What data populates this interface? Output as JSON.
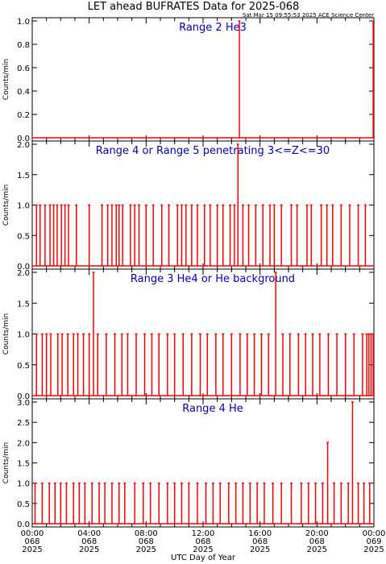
{
  "title": "LET ahead BUFRATES Data for 2025-068",
  "timestamp": "Sat Mar 15 09:55:53 2025 ACE Science Center",
  "xlabel": "UTC Day of Year",
  "ylabel": "Counts/min",
  "x_ticks": [
    {
      "time": "00:00",
      "doy": "068",
      "year": "2025"
    },
    {
      "time": "04:00",
      "doy": "068",
      "year": "2025"
    },
    {
      "time": "08:00",
      "doy": "068",
      "year": "2025"
    },
    {
      "time": "12:00",
      "doy": "068",
      "year": "2025"
    },
    {
      "time": "16:00",
      "doy": "068",
      "year": "2025"
    },
    {
      "time": "20:00",
      "doy": "068",
      "year": "2025"
    },
    {
      "time": "00:00",
      "doy": "069",
      "year": "2025"
    }
  ],
  "colors": {
    "line": "#ff0000",
    "panel_title": "#0000cc",
    "axes": "#000000"
  },
  "chart_data": [
    {
      "type": "line",
      "title": "Range 2 He3",
      "ylim": [
        0,
        1.0
      ],
      "yticks": [
        "0.0",
        "0.2",
        "0.4",
        "0.6",
        "0.8",
        "1.0"
      ],
      "xlim_hours": [
        0,
        24
      ],
      "spikes": [
        {
          "x": 14.55,
          "y": 1.0
        },
        {
          "x": 23.95,
          "y": 1.0
        }
      ]
    },
    {
      "type": "line",
      "title": "Range 4 or Range 5 penetrating 3<=Z<=30",
      "ylim": [
        0,
        2.0
      ],
      "yticks": [
        "0.0",
        "0.5",
        "1.0",
        "1.5",
        "2.0"
      ],
      "xlim_hours": [
        0,
        24
      ],
      "spikes": [
        {
          "x": 0.3,
          "y": 1
        },
        {
          "x": 0.55,
          "y": 1
        },
        {
          "x": 0.9,
          "y": 1
        },
        {
          "x": 1.25,
          "y": 1
        },
        {
          "x": 1.5,
          "y": 1
        },
        {
          "x": 1.75,
          "y": 1
        },
        {
          "x": 2.05,
          "y": 1
        },
        {
          "x": 2.3,
          "y": 1
        },
        {
          "x": 2.55,
          "y": 1
        },
        {
          "x": 3.1,
          "y": 1
        },
        {
          "x": 4.0,
          "y": 1
        },
        {
          "x": 4.9,
          "y": 1
        },
        {
          "x": 5.3,
          "y": 1
        },
        {
          "x": 5.6,
          "y": 1
        },
        {
          "x": 5.9,
          "y": 1
        },
        {
          "x": 6.1,
          "y": 1
        },
        {
          "x": 6.35,
          "y": 1
        },
        {
          "x": 6.9,
          "y": 1
        },
        {
          "x": 7.2,
          "y": 1
        },
        {
          "x": 7.5,
          "y": 1
        },
        {
          "x": 8.0,
          "y": 1
        },
        {
          "x": 8.5,
          "y": 1
        },
        {
          "x": 9.1,
          "y": 1
        },
        {
          "x": 9.6,
          "y": 1
        },
        {
          "x": 10.2,
          "y": 1
        },
        {
          "x": 10.5,
          "y": 1
        },
        {
          "x": 10.8,
          "y": 1
        },
        {
          "x": 11.2,
          "y": 1
        },
        {
          "x": 11.6,
          "y": 1
        },
        {
          "x": 12.1,
          "y": 1
        },
        {
          "x": 12.5,
          "y": 1
        },
        {
          "x": 13.0,
          "y": 1
        },
        {
          "x": 13.4,
          "y": 1
        },
        {
          "x": 13.9,
          "y": 1
        },
        {
          "x": 14.2,
          "y": 1
        },
        {
          "x": 14.45,
          "y": 2
        },
        {
          "x": 14.8,
          "y": 1
        },
        {
          "x": 15.2,
          "y": 1
        },
        {
          "x": 15.7,
          "y": 1
        },
        {
          "x": 16.2,
          "y": 1
        },
        {
          "x": 16.7,
          "y": 1
        },
        {
          "x": 17.0,
          "y": 1
        },
        {
          "x": 17.5,
          "y": 1
        },
        {
          "x": 18.2,
          "y": 1
        },
        {
          "x": 18.6,
          "y": 1
        },
        {
          "x": 19.3,
          "y": 1
        },
        {
          "x": 19.6,
          "y": 1
        },
        {
          "x": 20.3,
          "y": 1
        },
        {
          "x": 20.7,
          "y": 1
        },
        {
          "x": 21.1,
          "y": 1
        },
        {
          "x": 21.7,
          "y": 1
        },
        {
          "x": 22.3,
          "y": 1
        },
        {
          "x": 22.9,
          "y": 1
        },
        {
          "x": 23.4,
          "y": 1
        }
      ]
    },
    {
      "type": "line",
      "title": "Range 3 He4 or He background",
      "ylim": [
        0,
        2.0
      ],
      "yticks": [
        "0.0",
        "0.5",
        "1.0",
        "1.5",
        "2.0"
      ],
      "xlim_hours": [
        0,
        24
      ],
      "spikes": [
        {
          "x": 0.3,
          "y": 1
        },
        {
          "x": 0.7,
          "y": 1
        },
        {
          "x": 1.0,
          "y": 1
        },
        {
          "x": 1.3,
          "y": 1
        },
        {
          "x": 1.8,
          "y": 1
        },
        {
          "x": 2.1,
          "y": 1
        },
        {
          "x": 2.5,
          "y": 1
        },
        {
          "x": 2.9,
          "y": 1
        },
        {
          "x": 3.2,
          "y": 1
        },
        {
          "x": 3.6,
          "y": 1
        },
        {
          "x": 4.0,
          "y": 1
        },
        {
          "x": 4.3,
          "y": 2
        },
        {
          "x": 4.6,
          "y": 1
        },
        {
          "x": 5.2,
          "y": 1
        },
        {
          "x": 5.8,
          "y": 1
        },
        {
          "x": 6.3,
          "y": 1
        },
        {
          "x": 6.7,
          "y": 1
        },
        {
          "x": 7.3,
          "y": 1
        },
        {
          "x": 7.9,
          "y": 1
        },
        {
          "x": 8.4,
          "y": 1
        },
        {
          "x": 8.9,
          "y": 1
        },
        {
          "x": 9.5,
          "y": 1
        },
        {
          "x": 10.0,
          "y": 1
        },
        {
          "x": 10.6,
          "y": 1
        },
        {
          "x": 11.2,
          "y": 1
        },
        {
          "x": 11.8,
          "y": 1
        },
        {
          "x": 12.3,
          "y": 1
        },
        {
          "x": 12.9,
          "y": 1
        },
        {
          "x": 13.4,
          "y": 1
        },
        {
          "x": 14.0,
          "y": 1
        },
        {
          "x": 14.6,
          "y": 1
        },
        {
          "x": 15.1,
          "y": 1
        },
        {
          "x": 15.6,
          "y": 1
        },
        {
          "x": 16.1,
          "y": 1
        },
        {
          "x": 16.6,
          "y": 1
        },
        {
          "x": 17.1,
          "y": 2
        },
        {
          "x": 17.6,
          "y": 1
        },
        {
          "x": 18.1,
          "y": 1
        },
        {
          "x": 18.7,
          "y": 1
        },
        {
          "x": 19.2,
          "y": 1
        },
        {
          "x": 19.7,
          "y": 1
        },
        {
          "x": 20.2,
          "y": 1
        },
        {
          "x": 20.8,
          "y": 1
        },
        {
          "x": 21.4,
          "y": 1
        },
        {
          "x": 22.0,
          "y": 1
        },
        {
          "x": 22.6,
          "y": 1
        },
        {
          "x": 23.2,
          "y": 1
        },
        {
          "x": 23.5,
          "y": 1
        },
        {
          "x": 23.65,
          "y": 1
        },
        {
          "x": 23.8,
          "y": 1
        },
        {
          "x": 23.95,
          "y": 1
        }
      ]
    },
    {
      "type": "line",
      "title": "Range 4 He",
      "ylim": [
        0,
        3.0
      ],
      "yticks": [
        "0.0",
        "0.5",
        "1.0",
        "1.5",
        "2.0",
        "2.5",
        "3.0"
      ],
      "xlim_hours": [
        0,
        24
      ],
      "spikes": [
        {
          "x": 0.2,
          "y": 1
        },
        {
          "x": 0.7,
          "y": 1
        },
        {
          "x": 1.2,
          "y": 1
        },
        {
          "x": 1.6,
          "y": 1
        },
        {
          "x": 2.0,
          "y": 1
        },
        {
          "x": 2.4,
          "y": 1
        },
        {
          "x": 2.9,
          "y": 1
        },
        {
          "x": 3.3,
          "y": 1
        },
        {
          "x": 3.7,
          "y": 1
        },
        {
          "x": 4.2,
          "y": 1
        },
        {
          "x": 4.7,
          "y": 1
        },
        {
          "x": 5.1,
          "y": 1
        },
        {
          "x": 5.6,
          "y": 1
        },
        {
          "x": 6.1,
          "y": 1
        },
        {
          "x": 6.5,
          "y": 1
        },
        {
          "x": 7.2,
          "y": 1
        },
        {
          "x": 7.8,
          "y": 1
        },
        {
          "x": 8.3,
          "y": 1
        },
        {
          "x": 8.9,
          "y": 1
        },
        {
          "x": 9.5,
          "y": 1
        },
        {
          "x": 10.0,
          "y": 1
        },
        {
          "x": 10.5,
          "y": 1
        },
        {
          "x": 11.0,
          "y": 1
        },
        {
          "x": 11.6,
          "y": 1
        },
        {
          "x": 12.2,
          "y": 1
        },
        {
          "x": 12.7,
          "y": 1
        },
        {
          "x": 13.2,
          "y": 1
        },
        {
          "x": 13.8,
          "y": 1
        },
        {
          "x": 14.3,
          "y": 1
        },
        {
          "x": 14.8,
          "y": 1
        },
        {
          "x": 15.3,
          "y": 1
        },
        {
          "x": 15.8,
          "y": 1
        },
        {
          "x": 16.3,
          "y": 1
        },
        {
          "x": 16.9,
          "y": 1
        },
        {
          "x": 17.5,
          "y": 1
        },
        {
          "x": 18.2,
          "y": 1
        },
        {
          "x": 18.9,
          "y": 1
        },
        {
          "x": 19.4,
          "y": 1
        },
        {
          "x": 19.9,
          "y": 1
        },
        {
          "x": 20.4,
          "y": 1
        },
        {
          "x": 20.75,
          "y": 2
        },
        {
          "x": 21.2,
          "y": 1
        },
        {
          "x": 21.7,
          "y": 1
        },
        {
          "x": 22.2,
          "y": 1
        },
        {
          "x": 22.5,
          "y": 3
        },
        {
          "x": 22.9,
          "y": 1
        },
        {
          "x": 23.3,
          "y": 1
        },
        {
          "x": 23.7,
          "y": 1
        }
      ]
    }
  ]
}
